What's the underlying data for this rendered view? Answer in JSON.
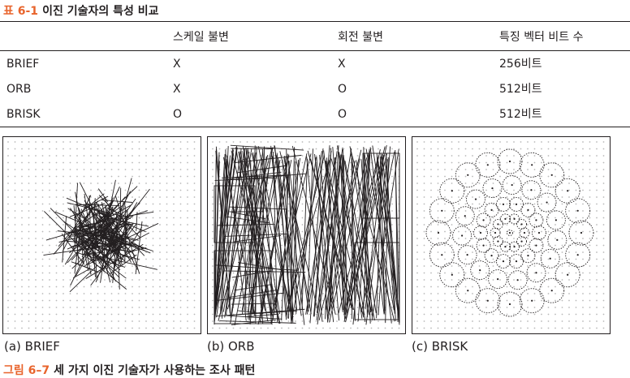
{
  "table": {
    "number": "표 6-1",
    "title": "이진 기술자의 특성 비교",
    "headers": [
      "",
      "스케일 불변",
      "회전 불변",
      "특징 벡터 비트 수"
    ],
    "rows": [
      [
        "BRIEF",
        "X",
        "X",
        "256비트"
      ],
      [
        "ORB",
        "X",
        "O",
        "512비트"
      ],
      [
        "BRISK",
        "O",
        "O",
        "512비트"
      ]
    ]
  },
  "figure": {
    "number": "그림 6–7",
    "title": "세 가지 이진 기술자가 사용하는 조사 패턴",
    "panels": [
      {
        "label": "(a) BRIEF",
        "pattern": "random-lines"
      },
      {
        "label": "(b) ORB",
        "pattern": "oriented-lines"
      },
      {
        "label": "(c) BRISK",
        "pattern": "concentric-circles"
      }
    ]
  },
  "colors": {
    "accent": "#e8642c",
    "text": "#231f20",
    "dots": "#b9b9b9"
  }
}
